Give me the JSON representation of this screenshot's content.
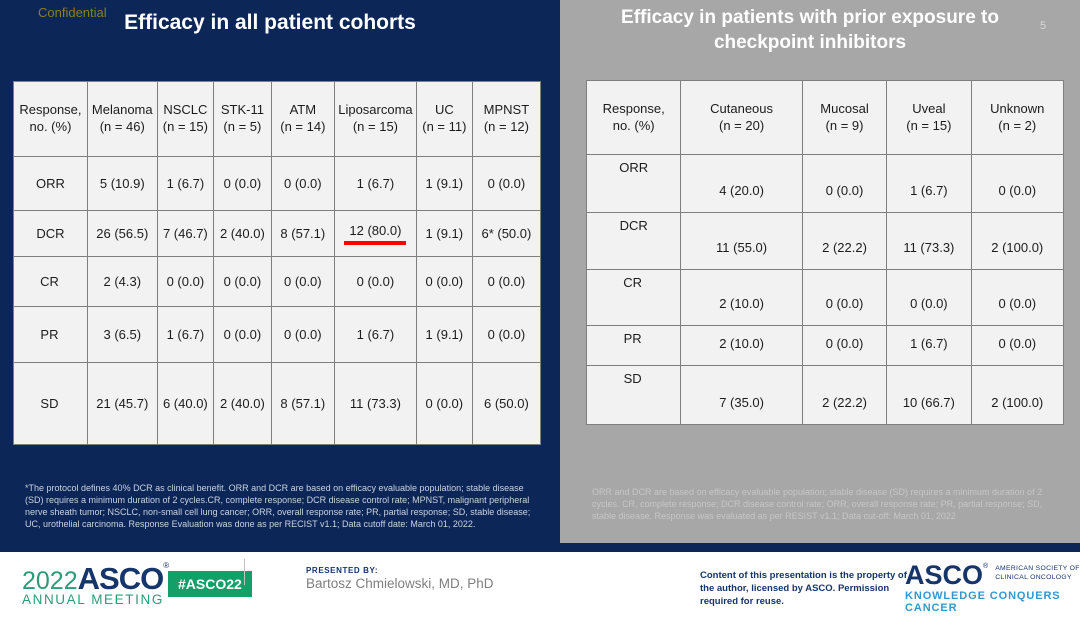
{
  "colors": {
    "navy_bg": "#0C2657",
    "gray_bg": "#A7A7A7",
    "table_bg": "#F2F2F2",
    "table_border": "#7F7F7F",
    "highlight_red": "#FF0000",
    "confidential_gold": "#8F7D20",
    "asco_green": "#2A9D77",
    "badge_green": "#13A068",
    "asco_navy": "#15356B",
    "tagline_blue": "#2F9AD2",
    "presenter_gray": "#7F7F7F"
  },
  "confidential_label": "Confidential",
  "page_number": "5",
  "left_panel": {
    "title": "Efficacy in all patient cohorts",
    "table": {
      "col_headers": [
        {
          "name": "Response,",
          "sub": "no. (%)"
        },
        {
          "name": "Melanoma",
          "sub": "(n = 46)"
        },
        {
          "name": "NSCLC",
          "sub": "(n = 15)"
        },
        {
          "name": "STK-11",
          "sub": "(n = 5)"
        },
        {
          "name": "ATM",
          "sub": "(n = 14)"
        },
        {
          "name": "Liposarcoma",
          "sub": "(n = 15)"
        },
        {
          "name": "UC",
          "sub": "(n = 11)"
        },
        {
          "name": "MPNST",
          "sub": "(n = 12)"
        }
      ],
      "rows": [
        {
          "label": "ORR",
          "indent": false,
          "values": [
            "5 (10.9)",
            "1 (6.7)",
            "0 (0.0)",
            "0 (0.0)",
            "1 (6.7)",
            "1 (9.1)",
            "0 (0.0)"
          ]
        },
        {
          "label": "DCR",
          "indent": false,
          "highlight_col": 4,
          "values": [
            "26 (56.5)",
            "7 (46.7)",
            "2 (40.0)",
            "8 (57.1)",
            "12 (80.0)",
            "1 (9.1)",
            "6* (50.0)"
          ]
        },
        {
          "label": "CR",
          "indent": true,
          "values": [
            "2 (4.3)",
            "0 (0.0)",
            "0 (0.0)",
            "0 (0.0)",
            "0 (0.0)",
            "0 (0.0)",
            "0 (0.0)"
          ]
        },
        {
          "label": "PR",
          "indent": true,
          "values": [
            "3 (6.5)",
            "1 (6.7)",
            "0 (0.0)",
            "0 (0.0)",
            "1 (6.7)",
            "1 (9.1)",
            "0 (0.0)"
          ]
        },
        {
          "label": "SD",
          "indent": true,
          "values": [
            "21 (45.7)",
            "6 (40.0)",
            "2 (40.0)",
            "8 (57.1)",
            "11 (73.3)",
            "0 (0.0)",
            "6 (50.0)"
          ]
        }
      ]
    },
    "footnote": "*The protocol defines 40% DCR as clinical benefit. ORR and DCR are based on efficacy evaluable population; stable disease (SD) requires a minimum duration of 2 cycles.CR, complete response; DCR disease control rate; MPNST, malignant peripheral nerve sheath tumor; NSCLC, non-small cell lung cancer; ORR, overall response rate; PR, partial response; SD, stable disease; UC, urothelial carcinoma. Response Evaluation was done as per RECIST v1.1; Data cutoff date: March 01, 2022."
  },
  "right_panel": {
    "title": "Efficacy in patients with prior exposure to checkpoint inhibitors",
    "table": {
      "col_headers": [
        {
          "name": "Response,",
          "sub": "no. (%)"
        },
        {
          "name": "Cutaneous",
          "sub": "(n = 20)"
        },
        {
          "name": "Mucosal",
          "sub": "(n = 9)"
        },
        {
          "name": "Uveal",
          "sub": "(n = 15)"
        },
        {
          "name": "Unknown",
          "sub": "(n = 2)"
        }
      ],
      "rows": [
        {
          "label": "ORR",
          "indent": false,
          "values": [
            "4 (20.0)",
            "0 (0.0)",
            "1 (6.7)",
            "0 (0.0)"
          ]
        },
        {
          "label": "DCR",
          "indent": false,
          "values": [
            "11 (55.0)",
            "2 (22.2)",
            "11 (73.3)",
            "2 (100.0)"
          ]
        },
        {
          "label": "CR",
          "indent": true,
          "values": [
            "2 (10.0)",
            "0 (0.0)",
            "0 (0.0)",
            "0 (0.0)"
          ]
        },
        {
          "label": "PR",
          "indent": true,
          "values": [
            "2 (10.0)",
            "0 (0.0)",
            "1 (6.7)",
            "0 (0.0)"
          ]
        },
        {
          "label": "SD",
          "indent": true,
          "values": [
            "7 (35.0)",
            "2 (22.2)",
            "10 (66.7)",
            "2 (100.0)"
          ]
        }
      ]
    },
    "footnote": "ORR and DCR are based on efficacy evaluable population; stable disease (SD) requires a minimum duration of 2 cycles. CR, complete response; DCR disease control rate; ORR, overall response rate; PR, partial response; SD, stable disease. Response was evaluated as per RESIST v1.1; Data cut-off: March 01, 2022"
  },
  "footer": {
    "meeting_year": "2022",
    "meeting_logo_asco": "ASCO",
    "meeting_logo_reg": "®",
    "meeting_logo_sub": "ANNUAL MEETING",
    "hashtag": "#ASCO22",
    "presented_by_label": "PRESENTED BY:",
    "presenter": "Bartosz Chmielowski, MD, PhD",
    "permission_text": "Content of this presentation is the property of the author, licensed by ASCO. Permission required for reuse.",
    "asco_logo": "ASCO",
    "asco_logo_reg": "®",
    "asco_society_line1": "AMERICAN SOCIETY OF",
    "asco_society_line2": "CLINICAL ONCOLOGY",
    "asco_tagline": "KNOWLEDGE CONQUERS CANCER"
  }
}
